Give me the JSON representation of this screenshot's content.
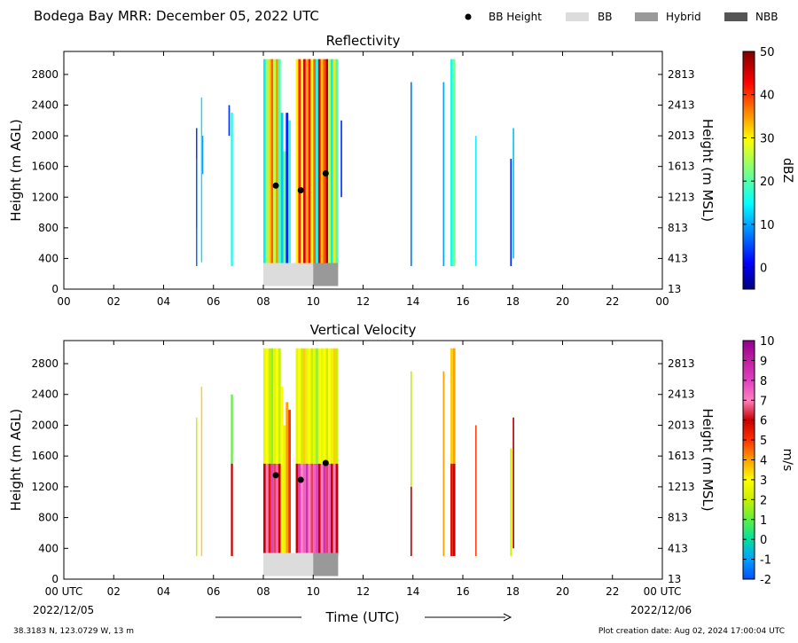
{
  "header": {
    "title": "Bodega Bay MRR:  December 05, 2022 UTC",
    "legend": [
      {
        "label": "BB Height",
        "kind": "marker",
        "color": "#000000"
      },
      {
        "label": "BB",
        "kind": "patch",
        "color": "#dcdcdc"
      },
      {
        "label": "Hybrid",
        "kind": "patch",
        "color": "#999999"
      },
      {
        "label": "NBB",
        "kind": "patch",
        "color": "#555555"
      }
    ]
  },
  "footer": {
    "location": "38.3183 N, 123.0729 W, 13 m",
    "creation_date": "Plot creation date: Aug 02, 2024 17:00:04 UTC",
    "xlabel": "Time (UTC)",
    "start_date": "2022/12/05",
    "end_date": "2022/12/06"
  },
  "chart_data": [
    {
      "type": "heatmap",
      "title": "Reflectivity",
      "ylabel": "Height (m AGL)",
      "ylabel_right": "Height (m MSL)",
      "xlim": [
        0,
        24
      ],
      "ylim": [
        0,
        3100
      ],
      "x_ticks": [
        "00",
        "02",
        "04",
        "06",
        "08",
        "10",
        "12",
        "14",
        "16",
        "18",
        "20",
        "22",
        "00"
      ],
      "y_ticks": [
        0,
        400,
        800,
        1200,
        1600,
        2000,
        2400,
        2800
      ],
      "y_ticks_right": [
        13,
        413,
        813,
        1213,
        1613,
        2013,
        2413,
        2813
      ],
      "colorbar": {
        "label": "dBZ",
        "min": -5,
        "max": 50,
        "ticks": [
          0,
          10,
          20,
          30,
          40,
          50
        ],
        "colormap": "jet"
      },
      "bb_height": [
        {
          "x": 8.5,
          "y": 1350
        },
        {
          "x": 9.5,
          "y": 1290
        },
        {
          "x": 10.5,
          "y": 1510
        }
      ],
      "bb_type": [
        {
          "from": 8.0,
          "to": 10.0,
          "type": "BB"
        },
        {
          "from": 10.0,
          "to": 11.0,
          "type": "Hybrid"
        }
      ],
      "echoes": [
        {
          "x": 5.3,
          "w": 0.05,
          "bottom": 800,
          "top": 2100,
          "value": 3
        },
        {
          "x": 5.3,
          "w": 0.05,
          "bottom": 300,
          "top": 1700,
          "value": 6
        },
        {
          "x": 5.5,
          "w": 0.05,
          "bottom": 350,
          "top": 2500,
          "value": 13
        },
        {
          "x": 5.55,
          "w": 0.04,
          "bottom": 1500,
          "top": 2000,
          "value": 9
        },
        {
          "x": 6.6,
          "w": 0.06,
          "bottom": 2000,
          "top": 2400,
          "value": 4
        },
        {
          "x": 6.7,
          "w": 0.08,
          "bottom": 300,
          "top": 2300,
          "value": 16
        },
        {
          "x": 8.0,
          "w": 0.1,
          "bottom": 300,
          "top": 3000,
          "value": 14
        },
        {
          "x": 8.1,
          "w": 0.1,
          "bottom": 300,
          "top": 3000,
          "value": 24
        },
        {
          "x": 8.2,
          "w": 0.1,
          "bottom": 300,
          "top": 3000,
          "value": 32
        },
        {
          "x": 8.3,
          "w": 0.1,
          "bottom": 300,
          "top": 3000,
          "value": 38
        },
        {
          "x": 8.4,
          "w": 0.1,
          "bottom": 300,
          "top": 3000,
          "value": 26
        },
        {
          "x": 8.5,
          "w": 0.1,
          "bottom": 300,
          "top": 3000,
          "value": 35
        },
        {
          "x": 8.6,
          "w": 0.1,
          "bottom": 300,
          "top": 3000,
          "value": 20
        },
        {
          "x": 8.7,
          "w": 0.1,
          "bottom": 300,
          "top": 2300,
          "value": 12
        },
        {
          "x": 8.8,
          "w": 0.1,
          "bottom": 300,
          "top": 1800,
          "value": 22
        },
        {
          "x": 8.9,
          "w": 0.1,
          "bottom": 300,
          "top": 2300,
          "value": 3
        },
        {
          "x": 9.0,
          "w": 0.1,
          "bottom": 300,
          "top": 2200,
          "value": 18
        },
        {
          "x": 9.3,
          "w": 0.1,
          "bottom": 300,
          "top": 3000,
          "value": 30
        },
        {
          "x": 9.4,
          "w": 0.1,
          "bottom": 300,
          "top": 3000,
          "value": 41
        },
        {
          "x": 9.5,
          "w": 0.1,
          "bottom": 300,
          "top": 3000,
          "value": 27
        },
        {
          "x": 9.6,
          "w": 0.1,
          "bottom": 300,
          "top": 3000,
          "value": 45
        },
        {
          "x": 9.7,
          "w": 0.1,
          "bottom": 300,
          "top": 3000,
          "value": 34
        },
        {
          "x": 9.8,
          "w": 0.1,
          "bottom": 300,
          "top": 3000,
          "value": 42
        },
        {
          "x": 9.9,
          "w": 0.1,
          "bottom": 300,
          "top": 3000,
          "value": 29
        },
        {
          "x": 10.0,
          "w": 0.1,
          "bottom": 300,
          "top": 3000,
          "value": 38
        },
        {
          "x": 10.1,
          "w": 0.1,
          "bottom": 300,
          "top": 3000,
          "value": 16
        },
        {
          "x": 10.2,
          "w": 0.1,
          "bottom": 300,
          "top": 3000,
          "value": 44
        },
        {
          "x": 10.3,
          "w": 0.1,
          "bottom": 300,
          "top": 3000,
          "value": 33
        },
        {
          "x": 10.4,
          "w": 0.1,
          "bottom": 300,
          "top": 3000,
          "value": 39
        },
        {
          "x": 10.5,
          "w": 0.1,
          "bottom": 300,
          "top": 3000,
          "value": 47
        },
        {
          "x": 10.6,
          "w": 0.1,
          "bottom": 300,
          "top": 3000,
          "value": 25
        },
        {
          "x": 10.7,
          "w": 0.1,
          "bottom": 300,
          "top": 3000,
          "value": 14
        },
        {
          "x": 10.8,
          "w": 0.1,
          "bottom": 300,
          "top": 3000,
          "value": 31
        },
        {
          "x": 10.9,
          "w": 0.1,
          "bottom": 300,
          "top": 3000,
          "value": 19
        },
        {
          "x": 11.1,
          "w": 0.06,
          "bottom": 1200,
          "top": 2200,
          "value": 4
        },
        {
          "x": 13.9,
          "w": 0.06,
          "bottom": 300,
          "top": 2700,
          "value": 8
        },
        {
          "x": 15.2,
          "w": 0.06,
          "bottom": 300,
          "top": 2700,
          "value": 10
        },
        {
          "x": 15.5,
          "w": 0.1,
          "bottom": 300,
          "top": 3000,
          "value": 16
        },
        {
          "x": 15.6,
          "w": 0.1,
          "bottom": 300,
          "top": 3000,
          "value": 22
        },
        {
          "x": 16.5,
          "w": 0.05,
          "bottom": 300,
          "top": 2000,
          "value": 14
        },
        {
          "x": 17.9,
          "w": 0.06,
          "bottom": 300,
          "top": 1700,
          "value": 3
        },
        {
          "x": 18.0,
          "w": 0.06,
          "bottom": 400,
          "top": 2100,
          "value": 12
        }
      ]
    },
    {
      "type": "heatmap",
      "title": "Vertical Velocity",
      "ylabel": "Height (m AGL)",
      "ylabel_right": "Height (m MSL)",
      "xlim": [
        0,
        24
      ],
      "ylim": [
        0,
        3100
      ],
      "x_ticks": [
        "00 UTC",
        "02",
        "04",
        "06",
        "08",
        "10",
        "12",
        "14",
        "16",
        "18",
        "20",
        "22",
        "00 UTC"
      ],
      "y_ticks": [
        0,
        400,
        800,
        1200,
        1600,
        2000,
        2400,
        2800
      ],
      "y_ticks_right": [
        13,
        413,
        813,
        1213,
        1613,
        2013,
        2413,
        2813
      ],
      "colorbar": {
        "label": "m/s",
        "min": -2,
        "max": 10,
        "ticks": [
          -2,
          -1,
          0,
          1,
          2,
          3,
          4,
          5,
          6,
          7,
          8,
          9,
          10
        ],
        "colormap": "velocity"
      },
      "bb_height": [
        {
          "x": 8.5,
          "y": 1350
        },
        {
          "x": 9.5,
          "y": 1290
        },
        {
          "x": 10.5,
          "y": 1510
        }
      ],
      "bb_type": [
        {
          "from": 8.0,
          "to": 10.0,
          "type": "BB"
        },
        {
          "from": 10.0,
          "to": 11.0,
          "type": "Hybrid"
        }
      ],
      "echoes": [
        {
          "x": 5.3,
          "w": 0.05,
          "bottom": 300,
          "top": 2100,
          "value": 2
        },
        {
          "x": 5.5,
          "w": 0.05,
          "bottom": 300,
          "top": 2500,
          "value": 3.5
        },
        {
          "x": 6.7,
          "w": 0.08,
          "bottom": 1500,
          "top": 2400,
          "value": 1
        },
        {
          "x": 6.7,
          "w": 0.08,
          "bottom": 300,
          "top": 1500,
          "value": 6
        },
        {
          "x": 8.0,
          "w": 0.1,
          "bottom": 1500,
          "top": 3000,
          "value": 2.5
        },
        {
          "x": 8.0,
          "w": 0.1,
          "bottom": 300,
          "top": 1500,
          "value": 6
        },
        {
          "x": 8.1,
          "w": 0.1,
          "bottom": 1500,
          "top": 3000,
          "value": 3
        },
        {
          "x": 8.1,
          "w": 0.1,
          "bottom": 300,
          "top": 1500,
          "value": 7
        },
        {
          "x": 8.2,
          "w": 0.1,
          "bottom": 1500,
          "top": 3000,
          "value": 2
        },
        {
          "x": 8.2,
          "w": 0.1,
          "bottom": 300,
          "top": 1500,
          "value": 5.5
        },
        {
          "x": 8.3,
          "w": 0.1,
          "bottom": 1500,
          "top": 3000,
          "value": 1.5
        },
        {
          "x": 8.3,
          "w": 0.1,
          "bottom": 300,
          "top": 1500,
          "value": 8
        },
        {
          "x": 8.4,
          "w": 0.1,
          "bottom": 1500,
          "top": 3000,
          "value": 2.5
        },
        {
          "x": 8.4,
          "w": 0.1,
          "bottom": 300,
          "top": 1500,
          "value": 6.5
        },
        {
          "x": 8.5,
          "w": 0.1,
          "bottom": 1500,
          "top": 3000,
          "value": 3
        },
        {
          "x": 8.5,
          "w": 0.1,
          "bottom": 300,
          "top": 1500,
          "value": 7.5
        },
        {
          "x": 8.6,
          "w": 0.1,
          "bottom": 1500,
          "top": 3000,
          "value": 2
        },
        {
          "x": 8.6,
          "w": 0.1,
          "bottom": 300,
          "top": 1500,
          "value": 6
        },
        {
          "x": 8.7,
          "w": 0.1,
          "bottom": 300,
          "top": 2500,
          "value": 3
        },
        {
          "x": 8.8,
          "w": 0.1,
          "bottom": 300,
          "top": 2000,
          "value": 2.5
        },
        {
          "x": 8.9,
          "w": 0.1,
          "bottom": 300,
          "top": 2300,
          "value": 4
        },
        {
          "x": 9.0,
          "w": 0.1,
          "bottom": 300,
          "top": 2200,
          "value": 5
        },
        {
          "x": 9.3,
          "w": 0.1,
          "bottom": 1500,
          "top": 3000,
          "value": 2.5
        },
        {
          "x": 9.3,
          "w": 0.1,
          "bottom": 300,
          "top": 1500,
          "value": 6
        },
        {
          "x": 9.4,
          "w": 0.1,
          "bottom": 1500,
          "top": 3000,
          "value": 3
        },
        {
          "x": 9.4,
          "w": 0.1,
          "bottom": 300,
          "top": 1500,
          "value": 8
        },
        {
          "x": 9.5,
          "w": 0.1,
          "bottom": 1500,
          "top": 3000,
          "value": 2
        },
        {
          "x": 9.5,
          "w": 0.1,
          "bottom": 300,
          "top": 1500,
          "value": 7
        },
        {
          "x": 9.6,
          "w": 0.1,
          "bottom": 1500,
          "top": 3000,
          "value": 3.5
        },
        {
          "x": 9.6,
          "w": 0.1,
          "bottom": 300,
          "top": 1500,
          "value": 7.5
        },
        {
          "x": 9.7,
          "w": 0.1,
          "bottom": 1500,
          "top": 3000,
          "value": 2.5
        },
        {
          "x": 9.7,
          "w": 0.1,
          "bottom": 300,
          "top": 1500,
          "value": 8.5
        },
        {
          "x": 9.8,
          "w": 0.1,
          "bottom": 1500,
          "top": 3000,
          "value": 3
        },
        {
          "x": 9.8,
          "w": 0.1,
          "bottom": 300,
          "top": 1500,
          "value": 7
        },
        {
          "x": 9.9,
          "w": 0.1,
          "bottom": 1500,
          "top": 3000,
          "value": 2
        },
        {
          "x": 9.9,
          "w": 0.1,
          "bottom": 300,
          "top": 1500,
          "value": 6.5
        },
        {
          "x": 10.0,
          "w": 0.1,
          "bottom": 1500,
          "top": 3000,
          "value": 2.5
        },
        {
          "x": 10.0,
          "w": 0.1,
          "bottom": 300,
          "top": 1500,
          "value": 7.5
        },
        {
          "x": 10.1,
          "w": 0.1,
          "bottom": 1500,
          "top": 3000,
          "value": 1.5
        },
        {
          "x": 10.1,
          "w": 0.1,
          "bottom": 300,
          "top": 1500,
          "value": 8
        },
        {
          "x": 10.2,
          "w": 0.1,
          "bottom": 1500,
          "top": 3000,
          "value": 3
        },
        {
          "x": 10.2,
          "w": 0.1,
          "bottom": 300,
          "top": 1500,
          "value": 6
        },
        {
          "x": 10.3,
          "w": 0.1,
          "bottom": 1500,
          "top": 3000,
          "value": 2.5
        },
        {
          "x": 10.3,
          "w": 0.1,
          "bottom": 300,
          "top": 1500,
          "value": 7
        },
        {
          "x": 10.4,
          "w": 0.1,
          "bottom": 1500,
          "top": 3000,
          "value": 3
        },
        {
          "x": 10.4,
          "w": 0.1,
          "bottom": 300,
          "top": 1500,
          "value": 8.5
        },
        {
          "x": 10.5,
          "w": 0.1,
          "bottom": 1500,
          "top": 3000,
          "value": 2
        },
        {
          "x": 10.5,
          "w": 0.1,
          "bottom": 300,
          "top": 1500,
          "value": 6.5
        },
        {
          "x": 10.6,
          "w": 0.1,
          "bottom": 1500,
          "top": 3000,
          "value": 3
        },
        {
          "x": 10.6,
          "w": 0.1,
          "bottom": 300,
          "top": 1500,
          "value": 7.5
        },
        {
          "x": 10.7,
          "w": 0.1,
          "bottom": 1500,
          "top": 3000,
          "value": 2.5
        },
        {
          "x": 10.7,
          "w": 0.1,
          "bottom": 300,
          "top": 1500,
          "value": 6
        },
        {
          "x": 10.8,
          "w": 0.1,
          "bottom": 1500,
          "top": 3000,
          "value": 3.5
        },
        {
          "x": 10.8,
          "w": 0.1,
          "bottom": 300,
          "top": 1500,
          "value": 7
        },
        {
          "x": 10.9,
          "w": 0.1,
          "bottom": 1500,
          "top": 3000,
          "value": 2
        },
        {
          "x": 10.9,
          "w": 0.1,
          "bottom": 300,
          "top": 1500,
          "value": 6
        },
        {
          "x": 13.9,
          "w": 0.06,
          "bottom": 1200,
          "top": 2700,
          "value": 2
        },
        {
          "x": 13.9,
          "w": 0.06,
          "bottom": 300,
          "top": 1200,
          "value": 6
        },
        {
          "x": 15.2,
          "w": 0.06,
          "bottom": 300,
          "top": 2700,
          "value": 4
        },
        {
          "x": 15.5,
          "w": 0.1,
          "bottom": 1500,
          "top": 3000,
          "value": 3.5
        },
        {
          "x": 15.5,
          "w": 0.1,
          "bottom": 300,
          "top": 1500,
          "value": 5.5
        },
        {
          "x": 15.6,
          "w": 0.1,
          "bottom": 1500,
          "top": 3000,
          "value": 4
        },
        {
          "x": 15.6,
          "w": 0.1,
          "bottom": 300,
          "top": 1500,
          "value": 6
        },
        {
          "x": 16.5,
          "w": 0.05,
          "bottom": 300,
          "top": 2000,
          "value": 5
        },
        {
          "x": 17.9,
          "w": 0.06,
          "bottom": 300,
          "top": 1700,
          "value": 2
        },
        {
          "x": 18.0,
          "w": 0.06,
          "bottom": 400,
          "top": 2100,
          "value": 6
        }
      ]
    }
  ]
}
